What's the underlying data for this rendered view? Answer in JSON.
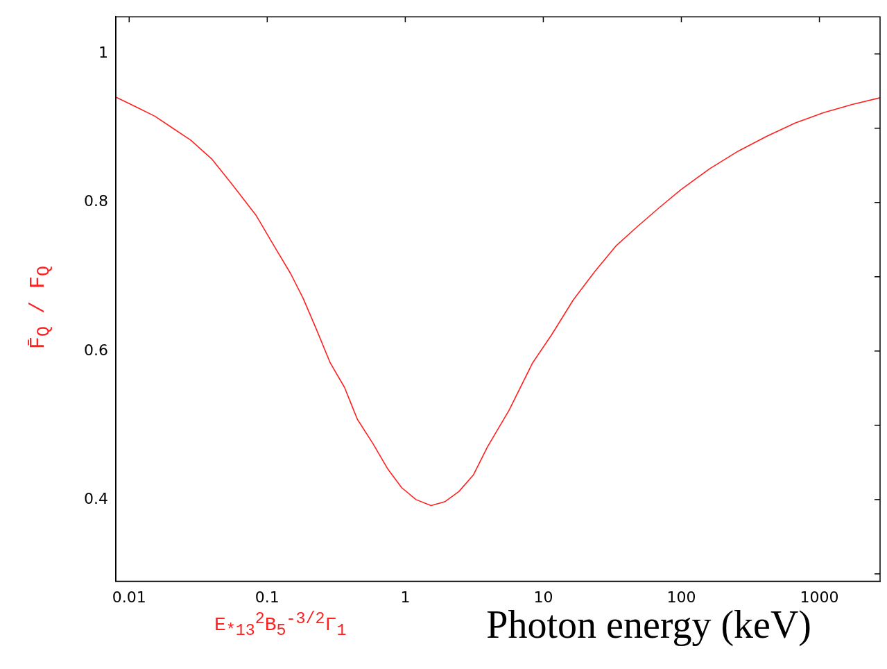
{
  "chart_data": {
    "type": "line",
    "xlabel": "Photon energy (keV)",
    "ylabel": "F̄$_{Q}$ / F$_{Q}$",
    "annotations": [
      "E$_{*13}$$^{2}$B$_{5}$$^{-3/2}$Γ$_{1}$"
    ],
    "log": "x",
    "xlim": [
      0.008,
      2750
    ],
    "xticks": [
      0.01,
      0.1,
      1,
      10,
      100,
      1000
    ],
    "ylim": [
      0.29,
      1.05
    ],
    "yticks": [
      {
        "value": 0.3,
        "label": null
      },
      0.4,
      {
        "value": 0.5,
        "label": null
      },
      0.6,
      {
        "value": 0.7,
        "label": null
      },
      0.8,
      {
        "value": 0.9,
        "label": null
      },
      1
    ],
    "grid": false,
    "legend": false,
    "marker": "none",
    "line_style": "solid",
    "series": [
      {
        "color": "#ff2020",
        "x": [
          0.00807,
          0.0114,
          0.0154,
          0.0207,
          0.0279,
          0.0399,
          0.057,
          0.0835,
          0.11,
          0.148,
          0.182,
          0.225,
          0.286,
          0.363,
          0.45,
          0.585,
          0.742,
          0.942,
          1.196,
          1.537,
          1.93,
          2.45,
          3.11,
          3.94,
          5.64,
          8.36,
          11.5,
          16.5,
          23.6,
          33.8,
          48.3,
          69.1,
          98.8,
          159,
          257,
          414,
          667,
          1075,
          1730,
          2750
        ],
        "values": [
          0.9415,
          0.928,
          0.916,
          0.9,
          0.884,
          0.858,
          0.822,
          0.782,
          0.744,
          0.704,
          0.671,
          0.631,
          0.584,
          0.551,
          0.508,
          0.475,
          0.442,
          0.416,
          0.4,
          0.392,
          0.397,
          0.411,
          0.433,
          0.471,
          0.52,
          0.584,
          0.622,
          0.669,
          0.707,
          0.742,
          0.768,
          0.793,
          0.817,
          0.845,
          0.869,
          0.889,
          0.907,
          0.921,
          0.932,
          0.941
        ]
      }
    ]
  }
}
